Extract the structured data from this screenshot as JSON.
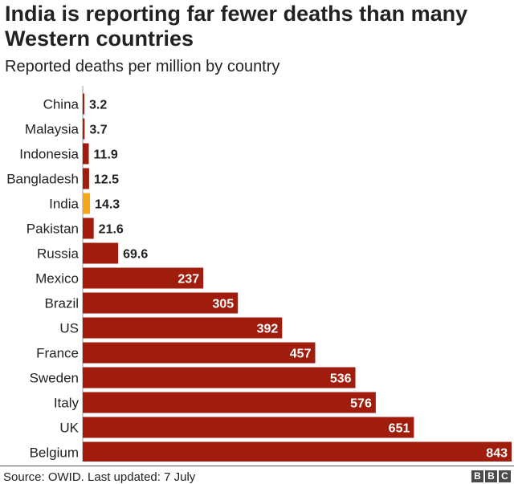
{
  "title": "India is reporting far fewer deaths than many Western countries",
  "subtitle": "Reported deaths per million by country",
  "source": "Source: OWID. Last updated: 7 July",
  "logo": [
    "B",
    "B",
    "C"
  ],
  "colors": {
    "bar": "#a01c0c",
    "highlight": "#f3a81a",
    "label_inside": "#ffffff",
    "label_outside": "#222222"
  },
  "chart_data": {
    "type": "bar",
    "orientation": "horizontal",
    "categories": [
      "China",
      "Malaysia",
      "Indonesia",
      "Bangladesh",
      "India",
      "Pakistan",
      "Russia",
      "Mexico",
      "Brazil",
      "US",
      "France",
      "Sweden",
      "Italy",
      "UK",
      "Belgium"
    ],
    "values": [
      3.2,
      3.7,
      11.9,
      12.5,
      14.3,
      21.6,
      69.6,
      237,
      305,
      392,
      457,
      536,
      576,
      651,
      843
    ],
    "value_labels": [
      "3.2",
      "3.7",
      "11.9",
      "12.5",
      "14.3",
      "21.6",
      "69.6",
      "237",
      "305",
      "392",
      "457",
      "536",
      "576",
      "651",
      "843"
    ],
    "highlight": "India",
    "xlim": [
      0,
      843
    ],
    "grid": false,
    "legend": "none"
  }
}
